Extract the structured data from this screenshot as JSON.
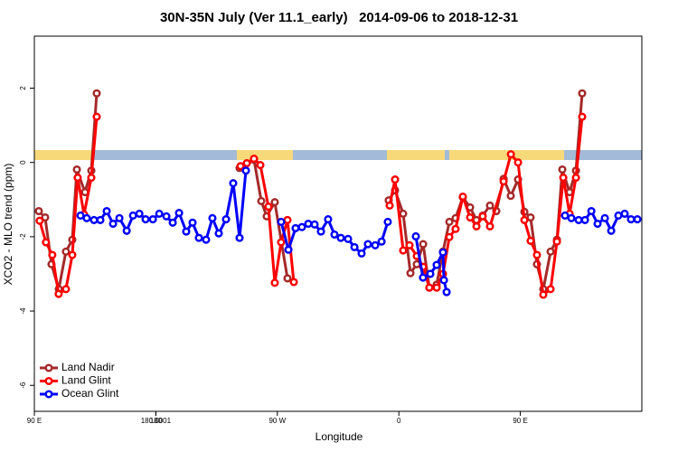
{
  "chart_data": {
    "type": "line",
    "title": "30N-35N July (Ver 11.1_early)   2014-09-06 to 2018-12-31",
    "x_label": "Longitude",
    "y_label": "XCO2 - MLO trend (ppm)",
    "xlim": [
      90,
      540
    ],
    "ylim": [
      -6.7,
      3.4
    ],
    "xticks": [
      {
        "value": 90,
        "label": "90 E"
      },
      180,
      {
        "value": 270,
        "label": "90 W"
      },
      {
        "value": 360,
        "label": "0"
      },
      {
        "value": 450,
        "label": "90 E"
      },
      180.0001
    ],
    "yticks": [
      -6,
      -4,
      -2,
      0,
      2
    ],
    "legend": "bottom-left",
    "series": [
      {
        "name": "Land Nadir",
        "color": "#a52a2a",
        "x": [
          93.3,
          98,
          102.7,
          108.1,
          113.4,
          118.1,
          121.5,
          127.5,
          132.2,
          136.2,
          190,
          242,
          245.4,
          252.7,
          258.1,
          262.1,
          268.1,
          277.5,
          315,
          352.5,
          357.2,
          363.2,
          368.6,
          373.3,
          378,
          382.6,
          388,
          392.7,
          397.4,
          402,
          407.4,
          412.8,
          417.5,
          422.1,
          427.5,
          432.2,
          437.6,
          442.9,
          448.3,
          453,
          457.6,
          462.3,
          467,
          472.4,
          477.1,
          481.1,
          486.5,
          491.2,
          495.8
        ],
        "values": [
          -1.31,
          -1.48,
          -2.74,
          -3.41,
          -2.4,
          -2.08,
          -0.19,
          -0.8,
          -0.22,
          1.86,
          null,
          -0.15,
          -0.1,
          0.07,
          -1.04,
          -1.45,
          -1.07,
          -3.12,
          null,
          -1.02,
          -0.75,
          -1.38,
          -2.98,
          -2.74,
          -2.2,
          -3.37,
          -3.29,
          -2.4,
          -1.6,
          -1.5,
          -0.94,
          -1.21,
          -1.55,
          -1.43,
          -1.16,
          -1.31,
          -0.44,
          -0.9,
          -0.46,
          -1.33,
          -1.48,
          -2.74,
          -3.41,
          -2.4,
          -2.08,
          -0.19,
          -0.8,
          -0.22,
          1.86
        ]
      },
      {
        "name": "Land Glint",
        "color": "#ff0000",
        "x": [
          93.9,
          98.6,
          103.3,
          108,
          113.4,
          118.1,
          122.1,
          126.8,
          132.2,
          136.2,
          190,
          242.7,
          247.4,
          252.7,
          257.4,
          263.4,
          268.1,
          272.8,
          277.5,
          282.2,
          318,
          353.2,
          357.2,
          363.2,
          367.9,
          373.3,
          378,
          382.6,
          388,
          392.7,
          397.4,
          402,
          407.4,
          412.8,
          417.5,
          422.1,
          427.5,
          437.6,
          443,
          448.3,
          453,
          457.6,
          462.3,
          467,
          472.4,
          477.1,
          481.8,
          486.5,
          491.2,
          495.8
        ],
        "values": [
          -1.57,
          -2.15,
          -2.49,
          -3.54,
          -3.41,
          -2.49,
          -0.41,
          -1.4,
          -0.41,
          1.23,
          null,
          -0.1,
          -0.02,
          0.1,
          -0.07,
          -1.19,
          -3.24,
          -2.15,
          -1.55,
          -3.22,
          null,
          -1.16,
          -0.46,
          -2.37,
          -2.23,
          -2.52,
          -2.81,
          -3.37,
          -3.37,
          -3.0,
          -2.01,
          -1.79,
          -0.92,
          -1.48,
          -1.72,
          -1.45,
          -1.72,
          -0.51,
          0.22,
          0.0,
          -1.55,
          -2.11,
          -2.49,
          -3.56,
          -3.41,
          -2.13,
          -0.41,
          -1.38,
          -0.41,
          1.23
        ]
      },
      {
        "name": "Ocean Glint",
        "color": "#0000ff",
        "x": [
          124.2,
          128.8,
          134.2,
          138.9,
          143.6,
          148.3,
          153,
          158.4,
          163.1,
          167.8,
          172.4,
          177.8,
          182.5,
          187.8,
          192.5,
          197.2,
          202.5,
          207.2,
          211.9,
          217.2,
          221.9,
          226.6,
          232,
          237.3,
          242,
          246.7,
          260,
          272.8,
          278.2,
          283.5,
          288.2,
          292.9,
          297.6,
          302.3,
          307.6,
          312.3,
          317,
          322.4,
          327.1,
          332.4,
          337.1,
          342.5,
          347.2,
          351.8,
          362,
          372.6,
          377.9,
          383.3,
          388,
          392.7,
          393.4,
          395.4,
          440,
          483.1,
          487.8,
          493.2,
          497.9,
          502.6,
          507.2,
          512.6,
          517.3,
          522.6,
          527.3,
          532,
          536.7
        ],
        "values": [
          -1.43,
          -1.5,
          -1.55,
          -1.55,
          -1.31,
          -1.65,
          -1.5,
          -1.84,
          -1.43,
          -1.38,
          -1.53,
          -1.53,
          -1.38,
          -1.45,
          -1.62,
          -1.36,
          -1.86,
          -1.62,
          -2.03,
          -2.08,
          -1.5,
          -1.91,
          -1.53,
          -0.56,
          -2.03,
          -0.22,
          null,
          -1.6,
          -2.35,
          -1.77,
          -1.74,
          -1.65,
          -1.67,
          -1.86,
          -1.53,
          -1.94,
          -2.03,
          -2.06,
          -2.28,
          -2.45,
          -2.2,
          -2.23,
          -2.13,
          -1.6,
          null,
          -1.99,
          -3.1,
          -3.0,
          -2.76,
          -2.42,
          -3.17,
          -3.49,
          null,
          -1.43,
          -1.5,
          -1.55,
          -1.55,
          -1.31,
          -1.65,
          -1.5,
          -1.84,
          -1.43,
          -1.38,
          -1.53,
          -1.53
        ]
      }
    ]
  }
}
